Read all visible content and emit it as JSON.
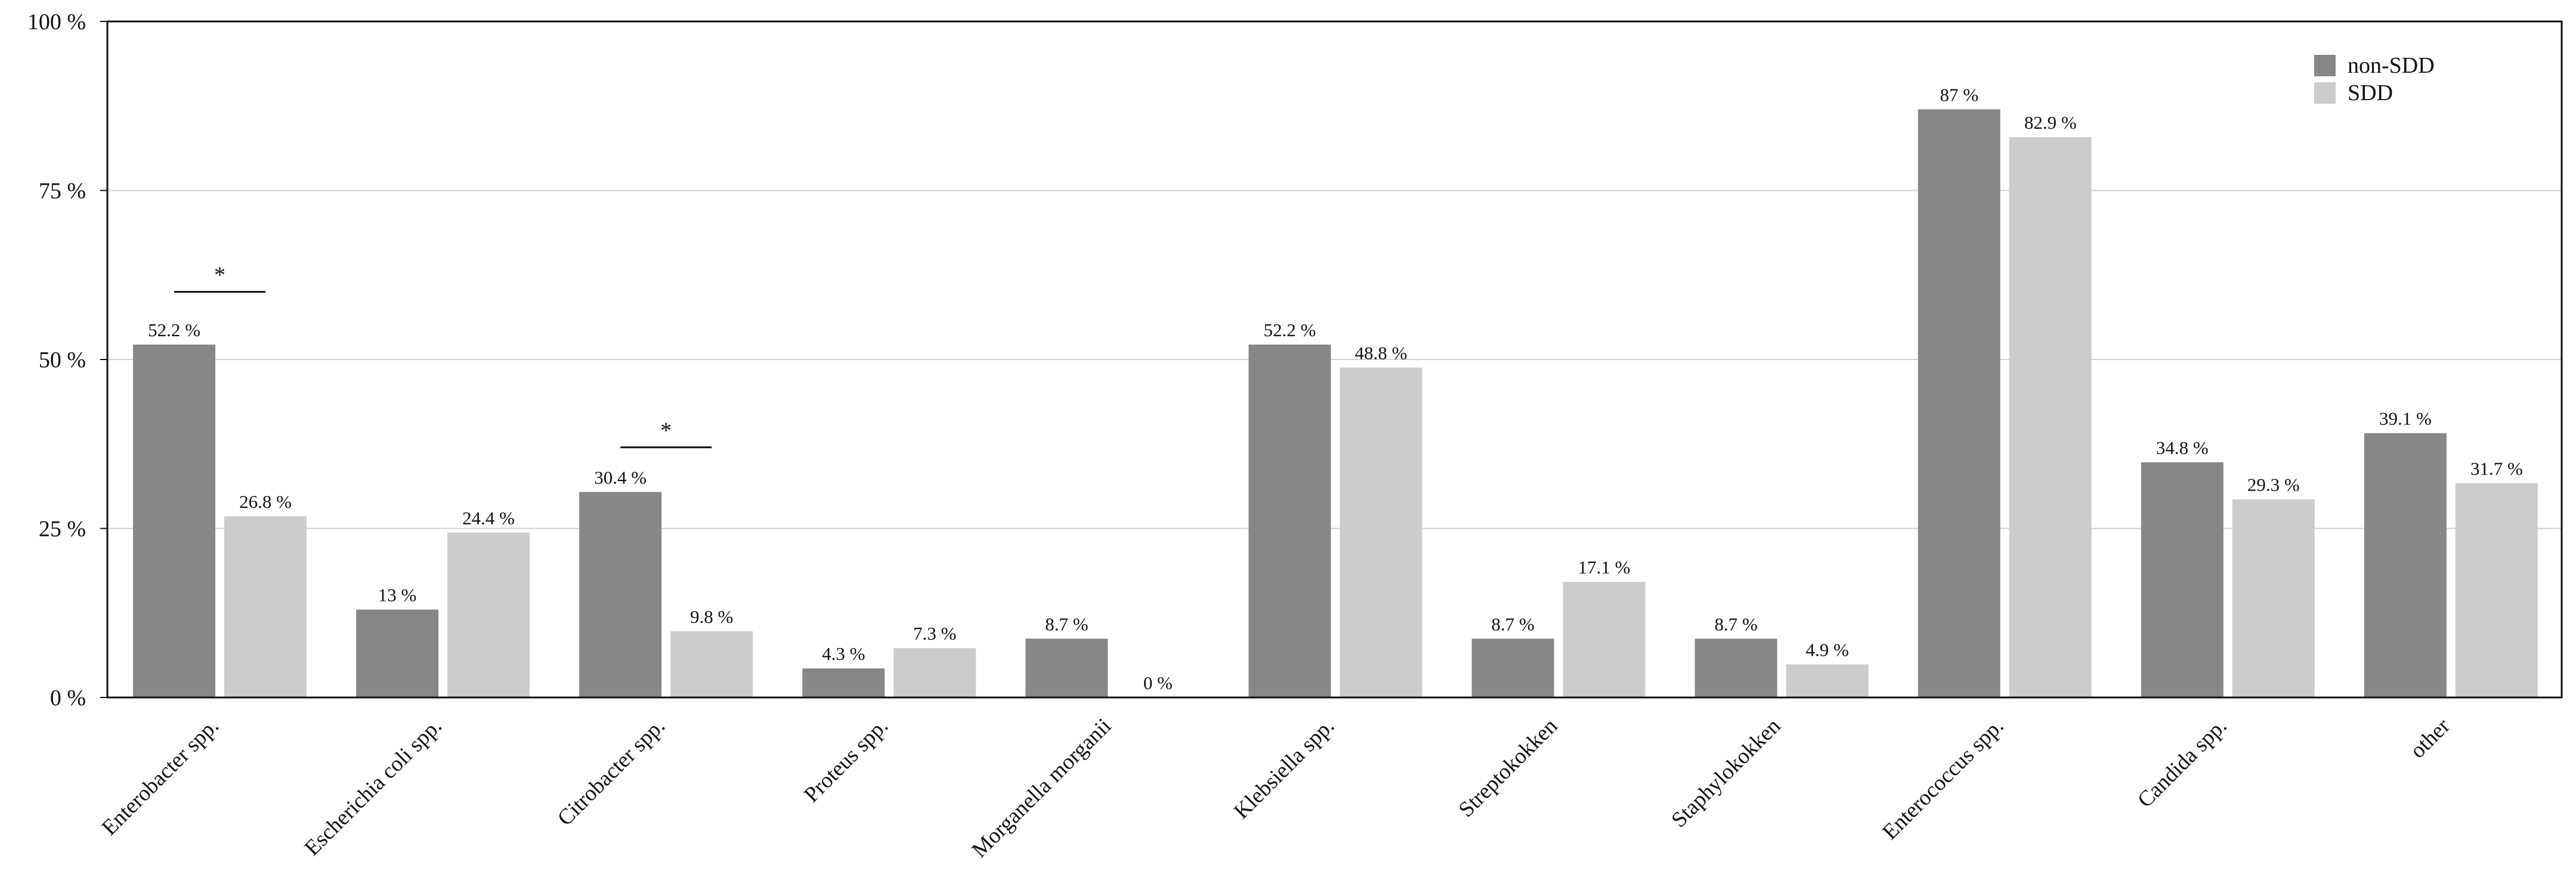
{
  "chart_data": {
    "type": "bar",
    "categories": [
      "Enterobacter spp.",
      "Escherichia coli spp.",
      "Citrobacter spp.",
      "Proteus spp.",
      "Morganella morganii",
      "Klebsiella spp.",
      "Streptokokken",
      "Staphylokokken",
      "Enterococcus spp.",
      "Candida spp.",
      "other"
    ],
    "series": [
      {
        "name": "non-SDD",
        "color": "#878787",
        "values": [
          52.2,
          13,
          30.4,
          4.3,
          8.7,
          52.2,
          8.7,
          8.7,
          87,
          34.8,
          39.1
        ],
        "labels": [
          "52.2 %",
          "13 %",
          "30.4 %",
          "4.3 %",
          "8.7 %",
          "52.2 %",
          "8.7 %",
          "8.7 %",
          "87 %",
          "34.8 %",
          "39.1 %"
        ]
      },
      {
        "name": "SDD",
        "color": "#cccccc",
        "values": [
          26.8,
          24.4,
          9.8,
          7.3,
          0,
          48.8,
          17.1,
          4.9,
          82.9,
          29.3,
          31.7
        ],
        "labels": [
          "26.8 %",
          "24.4 %",
          "9.8 %",
          "7.3 %",
          "0 %",
          "48.8 %",
          "17.1 %",
          "4.9 %",
          "82.9 %",
          "29.3 %",
          "31.7 %"
        ]
      }
    ],
    "yticks": [
      0,
      25,
      50,
      75,
      100
    ],
    "ytick_labels": [
      "0 %",
      "25 %",
      "50 %",
      "75 %",
      "100 %"
    ],
    "ylim": [
      0,
      100
    ],
    "grid": true,
    "legend_position": "top-right",
    "significance": [
      {
        "category_index": 0,
        "mark": "*",
        "y": 60
      },
      {
        "category_index": 2,
        "mark": "*",
        "y": 37
      }
    ]
  }
}
